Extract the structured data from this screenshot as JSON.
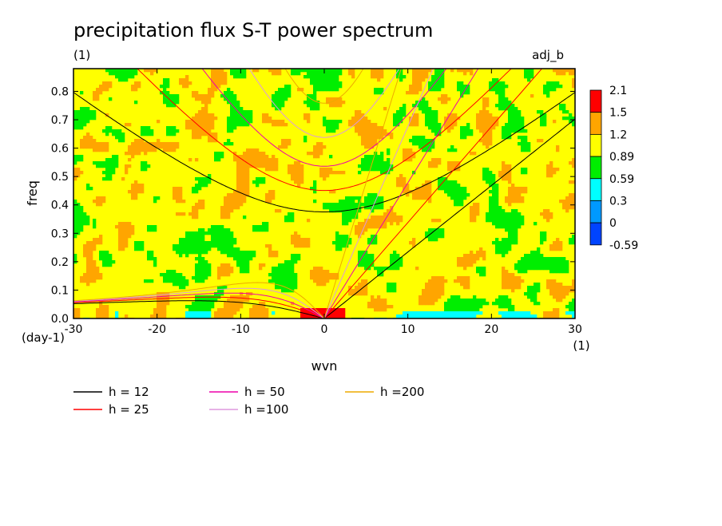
{
  "chart_data": {
    "type": "heatmap",
    "title": "precipitation flux S-T power spectrum",
    "subtitle_left": "(1)",
    "subtitle_right": "adj_b",
    "xlabel": "wvn",
    "ylabel": "freq",
    "x_units": "(1)",
    "y_units": "(day-1)",
    "xlim": [
      -30,
      30
    ],
    "ylim": [
      0,
      0.88
    ],
    "xticks": [
      -30,
      -20,
      -10,
      0,
      10,
      20,
      30
    ],
    "xtick_labels": [
      "-30",
      "-20",
      "-10",
      "0",
      "10",
      "20",
      "30"
    ],
    "yticks": [
      0,
      0.1,
      0.2,
      0.3,
      0.4,
      0.5,
      0.6,
      0.7,
      0.8
    ],
    "ytick_labels": [
      "0.0",
      "0.1",
      "0.2",
      "0.3",
      "0.4",
      "0.5",
      "0.6",
      "0.7",
      "0.8"
    ],
    "colorbar": {
      "levels": [
        "2.1",
        "1.5",
        "1.2",
        "0.89",
        "0.59",
        "0.3",
        "0",
        "-0.59"
      ],
      "colors": [
        "#ff0000",
        "#ffa500",
        "#ffff00",
        "#00ee00",
        "#00ffff",
        "#0099ff",
        "#0044ff"
      ]
    },
    "background_color": "#ffff00",
    "field_note": "",
    "dispersion_curves": [
      {
        "name": "h = 12",
        "color": "#000000"
      },
      {
        "name": "h = 25",
        "color": "#ff0000"
      },
      {
        "name": "h = 50",
        "color": "#ee00aa"
      },
      {
        "name": "h =100",
        "color": "#dd99dd"
      },
      {
        "name": "h =200",
        "color": "#eeaa00"
      }
    ]
  }
}
